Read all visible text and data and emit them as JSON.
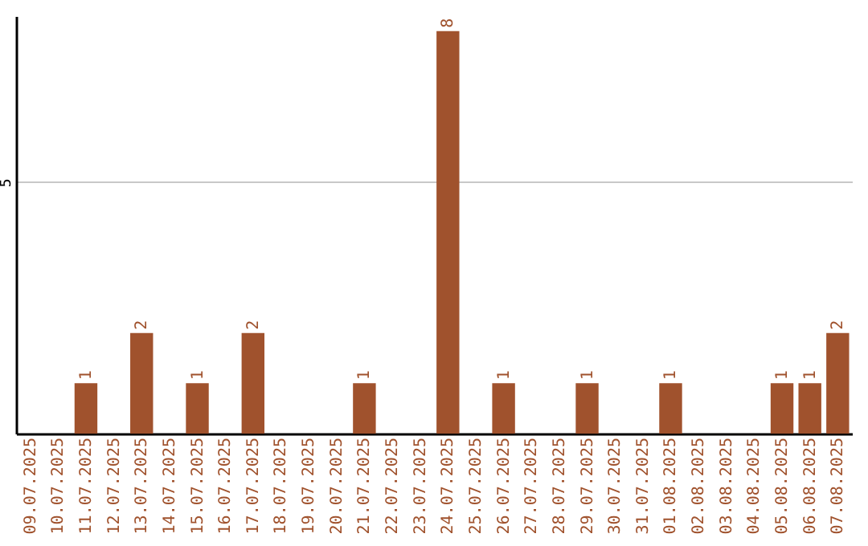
{
  "chart_data": {
    "type": "bar",
    "categories": [
      "09.07.2025",
      "10.07.2025",
      "11.07.2025",
      "12.07.2025",
      "13.07.2025",
      "14.07.2025",
      "15.07.2025",
      "16.07.2025",
      "17.07.2025",
      "18.07.2025",
      "19.07.2025",
      "20.07.2025",
      "21.07.2025",
      "22.07.2025",
      "23.07.2025",
      "24.07.2025",
      "25.07.2025",
      "26.07.2025",
      "27.07.2025",
      "28.07.2025",
      "29.07.2025",
      "30.07.2025",
      "31.07.2025",
      "01.08.2025",
      "02.08.2025",
      "03.08.2025",
      "04.08.2025",
      "05.08.2025",
      "06.08.2025",
      "07.08.2025"
    ],
    "values": [
      0,
      0,
      1,
      0,
      2,
      0,
      1,
      0,
      2,
      0,
      0,
      0,
      1,
      0,
      0,
      8,
      0,
      1,
      0,
      0,
      1,
      0,
      0,
      1,
      0,
      0,
      0,
      1,
      1,
      2
    ],
    "value_labels": [
      null,
      null,
      "1",
      null,
      "2",
      null,
      "1",
      null,
      "2",
      null,
      null,
      null,
      "1",
      null,
      null,
      "8",
      null,
      "1",
      null,
      null,
      "1",
      null,
      null,
      "1",
      null,
      null,
      null,
      "1",
      "1",
      "2"
    ],
    "color": "#a0522d",
    "ylim": [
      0,
      8.3
    ],
    "yticks": [
      5
    ],
    "grid": "y"
  }
}
